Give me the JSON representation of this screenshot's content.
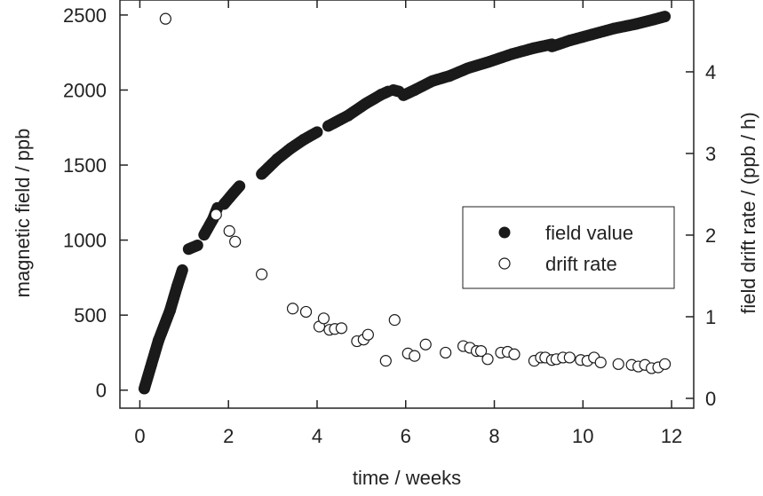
{
  "chart_data": {
    "type": "scatter",
    "xlabel": "time / weeks",
    "ylabel_left": "magnetic field / ppb",
    "ylabel_right": "field drift rate / (ppb / h)",
    "xlim": [
      -0.45,
      12.5
    ],
    "ylim_left": [
      -120,
      2600
    ],
    "ylim_right": [
      -0.12,
      4.88
    ],
    "x_ticks": [
      0,
      2,
      4,
      6,
      8,
      10,
      12
    ],
    "y_left_ticks": [
      0,
      500,
      1000,
      1500,
      2000,
      2500
    ],
    "y_right_ticks": [
      0,
      1,
      2,
      3,
      4
    ],
    "grid": false,
    "legend_position": "center-right",
    "series": [
      {
        "name": "field value",
        "axis": "left",
        "marker": "filled-circle",
        "color": "#1a1a1a",
        "segments": [
          [
            0.1,
            10,
            0.42,
            330,
            0.68,
            530,
            0.84,
            690,
            0.96,
            800
          ],
          [
            1.1,
            940,
            1.3,
            965
          ],
          [
            1.45,
            1035,
            1.65,
            1140,
            1.75,
            1215
          ],
          [
            1.9,
            1240,
            2.1,
            1310,
            2.25,
            1360
          ],
          [
            2.75,
            1440,
            3.1,
            1540,
            3.4,
            1610,
            3.7,
            1670,
            4.0,
            1720
          ],
          [
            4.25,
            1760,
            4.7,
            1830,
            5.1,
            1910,
            5.45,
            1970,
            5.6,
            1990
          ],
          [
            5.72,
            2000,
            5.85,
            1990
          ],
          [
            5.95,
            1965,
            6.2,
            2000,
            6.6,
            2060,
            7.0,
            2095,
            7.4,
            2145,
            7.9,
            2190,
            8.4,
            2240,
            8.9,
            2280,
            9.3,
            2305
          ],
          [
            9.3,
            2290,
            9.7,
            2330,
            10.2,
            2370,
            10.7,
            2410,
            11.2,
            2440,
            11.6,
            2470,
            11.85,
            2490
          ]
        ]
      },
      {
        "name": "drift rate",
        "axis": "right",
        "marker": "open-circle",
        "color": "#1a1a1a",
        "x": [
          0.58,
          1.72,
          2.02,
          2.15,
          2.75,
          3.45,
          3.75,
          4.05,
          4.15,
          4.28,
          4.4,
          4.55,
          4.9,
          5.05,
          5.15,
          5.55,
          5.75,
          6.05,
          6.2,
          6.45,
          6.9,
          7.3,
          7.45,
          7.6,
          7.7,
          7.85,
          8.15,
          8.3,
          8.45,
          8.9,
          9.05,
          9.15,
          9.3,
          9.4,
          9.55,
          9.7,
          9.95,
          10.1,
          10.25,
          10.4,
          10.8,
          11.1,
          11.25,
          11.4,
          11.55,
          11.7,
          11.85
        ],
        "y": [
          4.65,
          2.25,
          2.05,
          1.92,
          1.52,
          1.1,
          1.06,
          0.88,
          0.98,
          0.84,
          0.85,
          0.86,
          0.7,
          0.72,
          0.78,
          0.46,
          0.96,
          0.55,
          0.52,
          0.66,
          0.56,
          0.64,
          0.62,
          0.58,
          0.58,
          0.48,
          0.56,
          0.57,
          0.54,
          0.46,
          0.5,
          0.5,
          0.47,
          0.48,
          0.5,
          0.5,
          0.47,
          0.46,
          0.5,
          0.44,
          0.42,
          0.41,
          0.39,
          0.41,
          0.37,
          0.38,
          0.42
        ]
      }
    ],
    "legend": {
      "entries": [
        "field value",
        "drift rate"
      ]
    }
  }
}
